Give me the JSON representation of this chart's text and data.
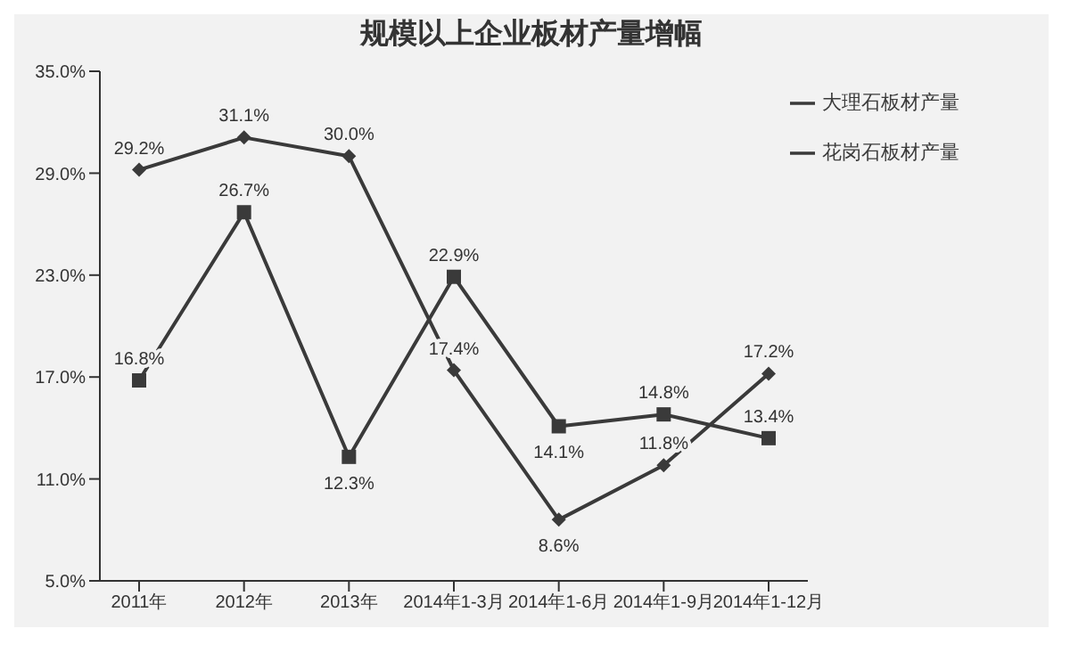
{
  "chart_data": {
    "type": "line",
    "title": "规模以上企业板材产量增幅",
    "categories": [
      "2011年",
      "2012年",
      "2013年",
      "2014年1-3月",
      "2014年1-6月",
      "2014年1-9月",
      "2014年1-12月"
    ],
    "series": [
      {
        "name": "大理石板材产量",
        "color": "#3a3a3a",
        "marker": "diamond",
        "values": [
          29.2,
          31.1,
          30.0,
          17.4,
          8.6,
          11.8,
          17.2
        ],
        "value_labels": [
          "29.2%",
          "31.1%",
          "30.0%",
          "17.4%",
          "8.6%",
          "11.8%",
          "17.2%"
        ]
      },
      {
        "name": "花岗石板材产量",
        "color": "#3a3a3a",
        "marker": "square",
        "values": [
          16.8,
          26.7,
          12.3,
          22.9,
          14.1,
          14.8,
          13.4
        ],
        "value_labels": [
          "16.8%",
          "26.7%",
          "12.3%",
          "22.9%",
          "14.1%",
          "14.8%",
          "13.4%"
        ]
      }
    ],
    "ylim": [
      5,
      35
    ],
    "yticks": [
      {
        "value": 5,
        "label": "5.0%"
      },
      {
        "value": 11,
        "label": "11.0%"
      },
      {
        "value": 17,
        "label": "17.0%"
      },
      {
        "value": 23,
        "label": "23.0%"
      },
      {
        "value": 29,
        "label": "29.0%"
      },
      {
        "value": 35,
        "label": "35.0%"
      }
    ],
    "grid": false,
    "legend": "top right",
    "line_style": "solid"
  }
}
